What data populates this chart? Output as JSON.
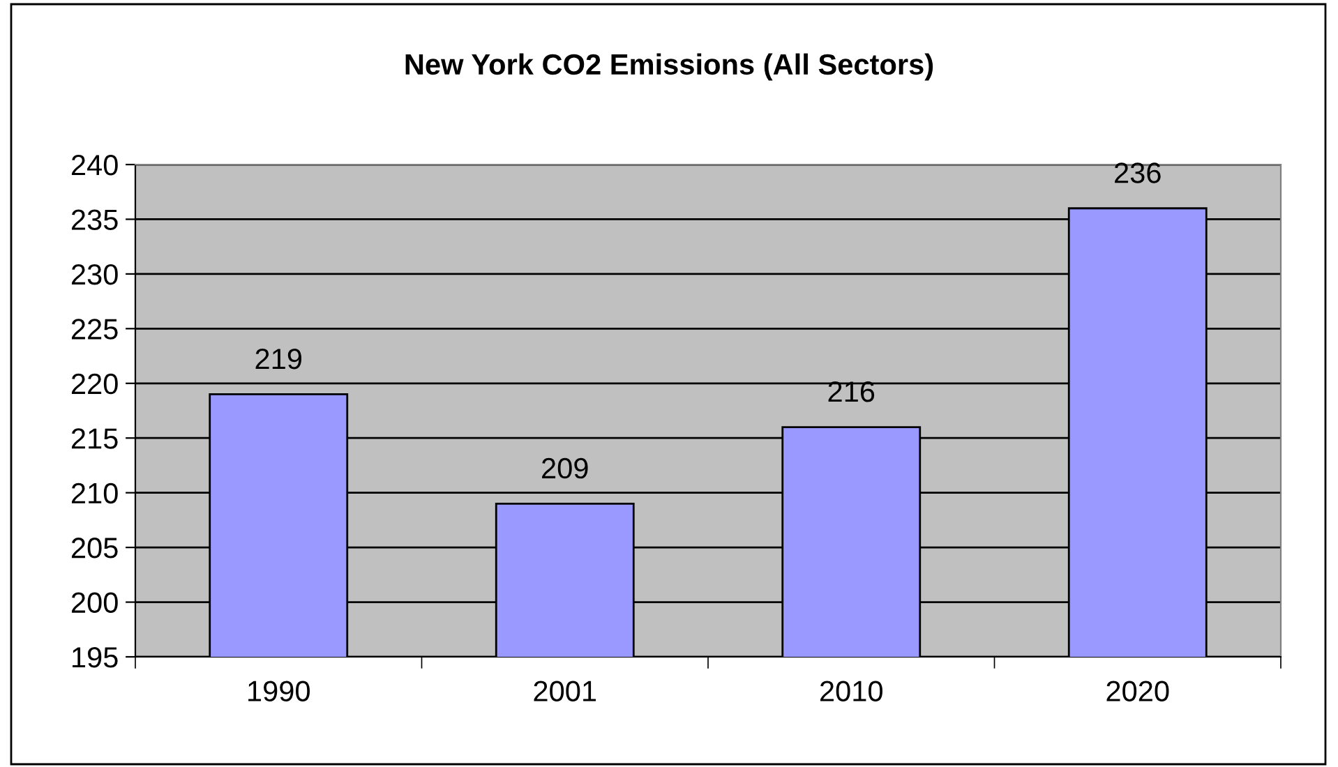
{
  "chart_data": {
    "type": "bar",
    "title": "New York CO2 Emissions (All Sectors)",
    "categories": [
      "1990",
      "2001",
      "2010",
      "2020"
    ],
    "values": [
      219,
      209,
      216,
      236
    ],
    "color": "#9999ff",
    "ylim": [
      195,
      240
    ],
    "yticks": [
      195,
      200,
      205,
      210,
      215,
      220,
      225,
      230,
      235,
      240
    ],
    "grid": "y",
    "data_labels": true,
    "legend": false
  }
}
